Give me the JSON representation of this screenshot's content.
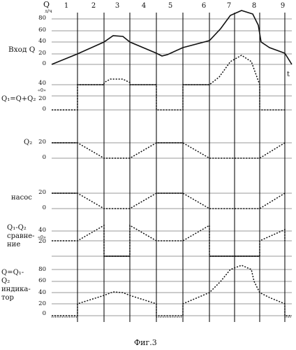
{
  "header": {
    "q_symbol": "Q",
    "q_unit": "л/ч",
    "columns": [
      "1",
      "2",
      "3",
      "4",
      "5",
      "6",
      "7",
      "8",
      "9"
    ],
    "t_symbol": "t"
  },
  "rows": [
    {
      "label": "Вход Q",
      "ticks": [
        "80",
        "60",
        "40",
        "20",
        "0"
      ]
    },
    {
      "label": "Q₁=Q+Q₂",
      "ticks": [
        "40",
        "«0»",
        "20",
        "0"
      ]
    },
    {
      "label": "Q₂",
      "ticks": [
        "20",
        "0"
      ]
    },
    {
      "label": "насос",
      "ticks": [
        "20",
        "0"
      ]
    },
    {
      "label": "Q₁-Q₂ сравне-ние",
      "ticks": [
        "40",
        "«0»",
        "20"
      ]
    },
    {
      "label": "Q=Q₁-Q₂ индика-тор",
      "ticks": [
        "80",
        "60",
        "40",
        "20",
        "0"
      ]
    }
  ],
  "caption": "Фиг.3"
}
